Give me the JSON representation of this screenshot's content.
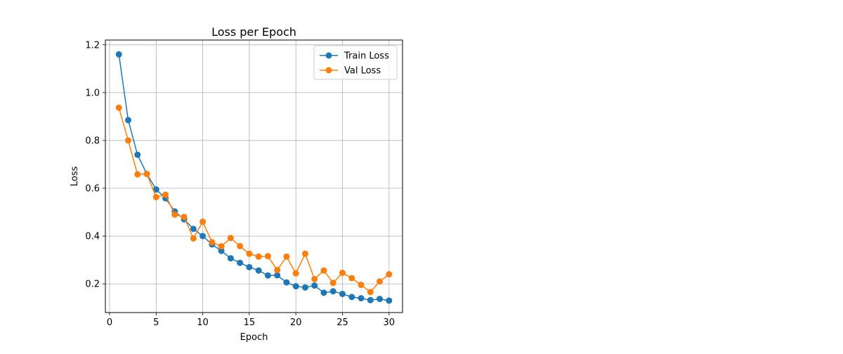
{
  "chart_data": {
    "type": "line",
    "title": "Loss per Epoch",
    "xlabel": "Epoch",
    "ylabel": "Loss",
    "xlim": [
      -0.45,
      31.45
    ],
    "ylim": [
      0.08,
      1.22
    ],
    "xticks": [
      0,
      5,
      10,
      15,
      20,
      25,
      30
    ],
    "yticks": [
      0.2,
      0.4,
      0.6,
      0.8,
      1.0,
      1.2
    ],
    "ytick_labels": [
      "0.2",
      "0.4",
      "0.6",
      "0.8",
      "1.0",
      "1.2"
    ],
    "grid": true,
    "legend_position": "top-right",
    "x": [
      1,
      2,
      3,
      4,
      5,
      6,
      7,
      8,
      9,
      10,
      11,
      12,
      13,
      14,
      15,
      16,
      17,
      18,
      19,
      20,
      21,
      22,
      23,
      24,
      25,
      26,
      27,
      28,
      29,
      30
    ],
    "series": [
      {
        "name": "Train Loss",
        "color": "#1f77b4",
        "values": [
          1.16,
          0.885,
          0.74,
          0.66,
          0.595,
          0.558,
          0.503,
          0.47,
          0.43,
          0.4,
          0.365,
          0.338,
          0.307,
          0.288,
          0.27,
          0.256,
          0.235,
          0.236,
          0.206,
          0.19,
          0.185,
          0.193,
          0.163,
          0.169,
          0.158,
          0.145,
          0.14,
          0.132,
          0.137,
          0.13
        ]
      },
      {
        "name": "Val Loss",
        "color": "#ff7f0e",
        "values": [
          0.937,
          0.8,
          0.658,
          0.66,
          0.563,
          0.573,
          0.49,
          0.48,
          0.39,
          0.46,
          0.374,
          0.357,
          0.392,
          0.358,
          0.326,
          0.314,
          0.316,
          0.258,
          0.314,
          0.244,
          0.326,
          0.22,
          0.256,
          0.204,
          0.246,
          0.224,
          0.196,
          0.166,
          0.21,
          0.24
        ]
      }
    ]
  }
}
